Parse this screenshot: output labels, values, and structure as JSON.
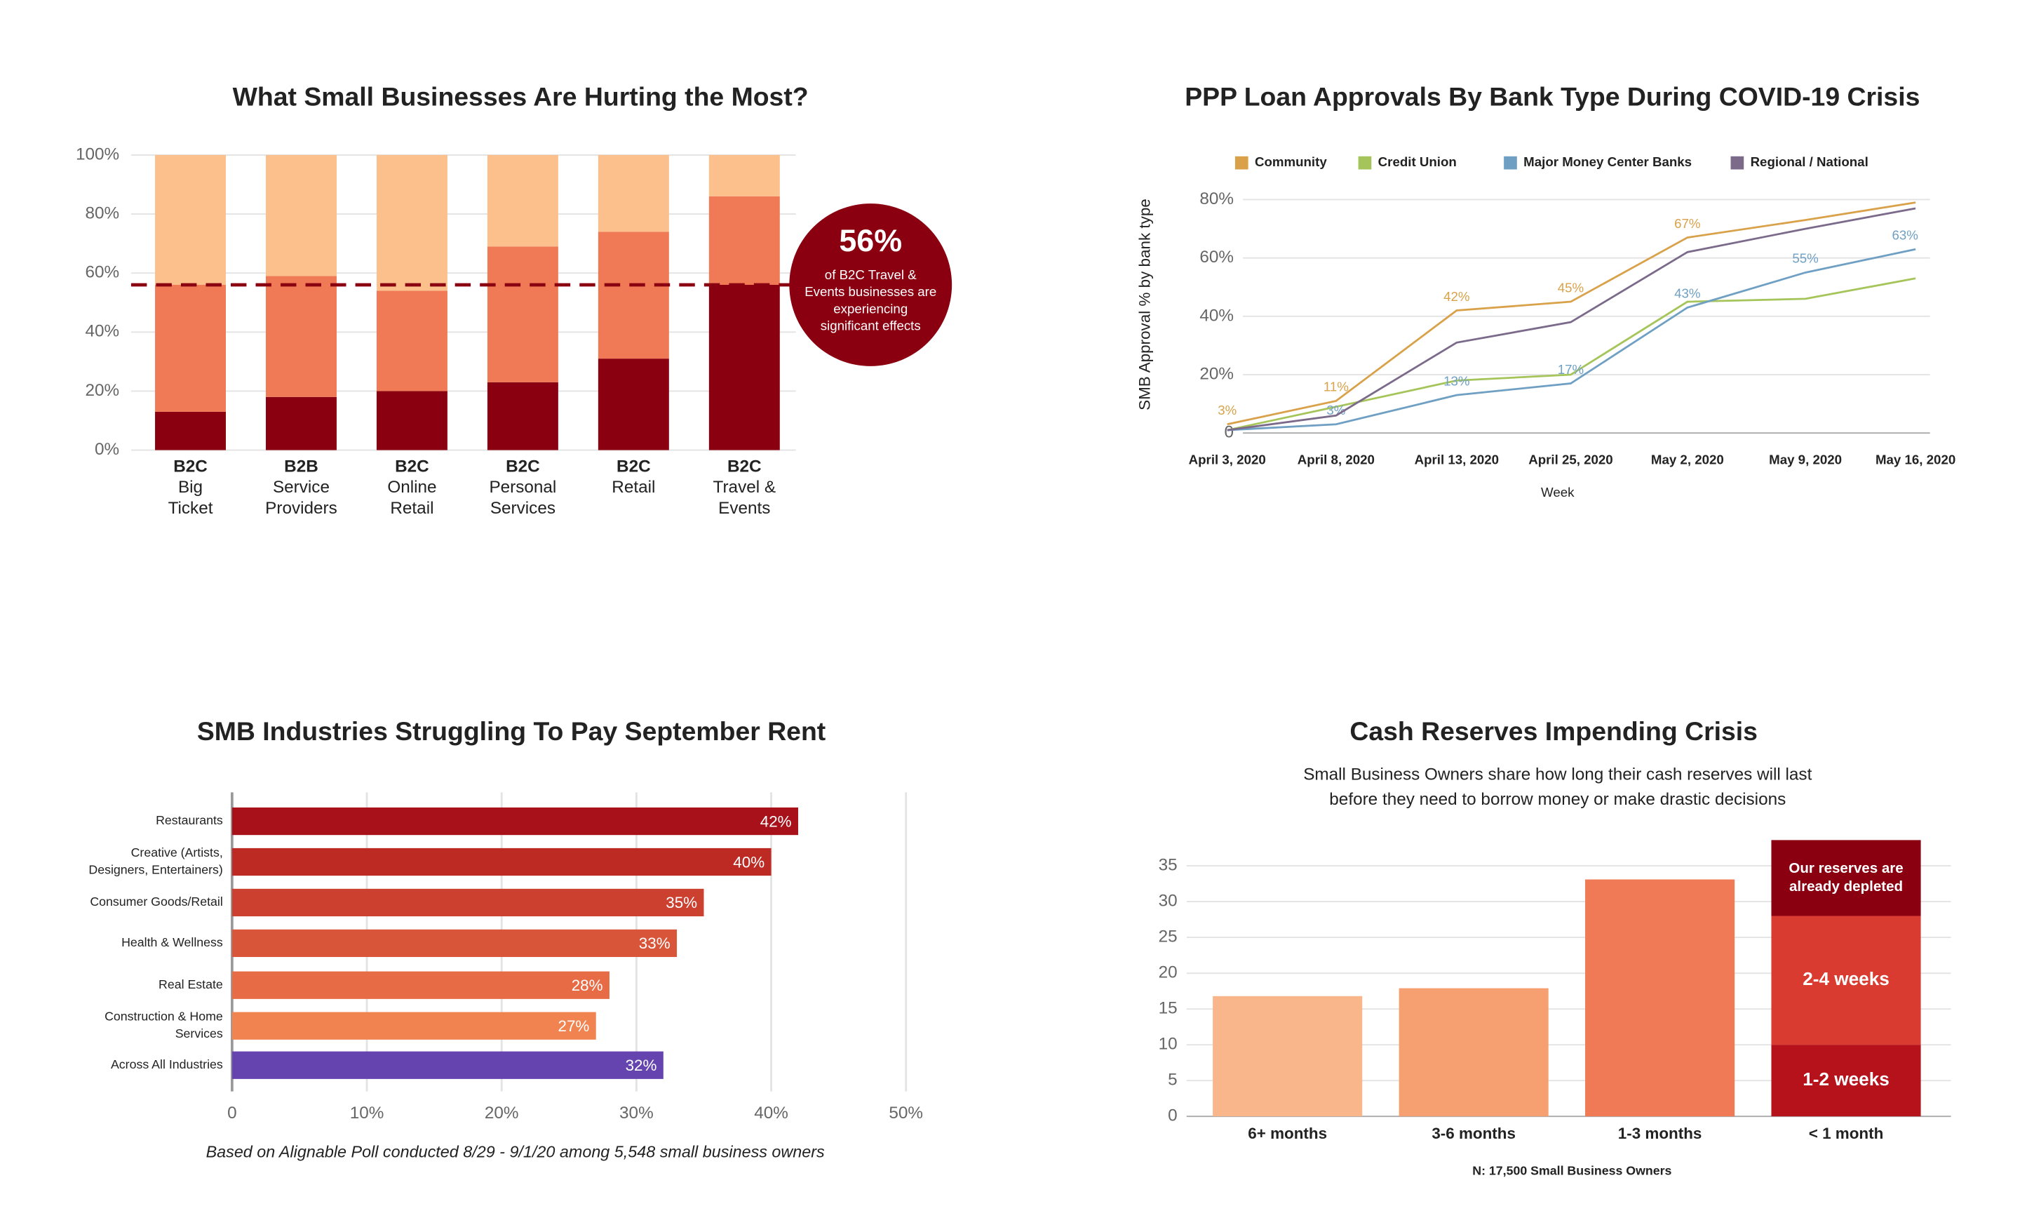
{
  "chart_data": [
    {
      "type": "stacked-bar",
      "title": "What Small Businesses Are Hurting the Most?",
      "categories": [
        [
          "B2C",
          "Big",
          "Ticket"
        ],
        [
          "B2B",
          "Service",
          "Providers"
        ],
        [
          "B2C",
          "Online",
          "Retail"
        ],
        [
          "B2C",
          "Personal",
          "Services"
        ],
        [
          "B2C",
          "Retail"
        ],
        [
          "B2C",
          "Travel &",
          "Events"
        ]
      ],
      "series": [
        {
          "color": "#8b0010",
          "values": [
            13,
            18,
            20,
            23,
            31,
            56
          ]
        },
        {
          "color": "#f07a55",
          "values": [
            43,
            41,
            34,
            46,
            43,
            30
          ]
        },
        {
          "color": "#fbc08b",
          "values": [
            44,
            41,
            46,
            31,
            26,
            14
          ]
        }
      ],
      "ylim": [
        0,
        100
      ],
      "yticks": [
        {
          "value": 0,
          "label": "0%"
        },
        {
          "value": 20,
          "label": "20%"
        },
        {
          "value": 40,
          "label": "40%"
        },
        {
          "value": 60,
          "label": "60%"
        },
        {
          "value": 80,
          "label": "80%"
        },
        {
          "value": 100,
          "label": "100%"
        }
      ],
      "grid": true,
      "annotation": {
        "value": 56,
        "label": "56%",
        "color": "#8b0010",
        "text": [
          "of B2C Travel &",
          "Events businesses are",
          "experiencing",
          "significant effects"
        ]
      }
    },
    {
      "type": "line",
      "title": "PPP Loan Approvals By Bank Type During COVID-19 Crisis",
      "x": [
        "April 3, 2020",
        "April 8, 2020",
        "April 13, 2020",
        "April 25, 2020",
        "May 2, 2020",
        "May 9, 2020",
        "May 16, 2020"
      ],
      "series": [
        {
          "name": "Community",
          "color": "#d9a24a",
          "values": [
            3,
            11,
            42,
            45,
            67,
            73,
            79
          ],
          "value_labels": [
            "3%",
            "11%",
            "42%",
            "45%",
            "67%",
            null,
            null
          ]
        },
        {
          "name": "Credit Union",
          "color": "#a5c55a",
          "values": [
            1,
            9,
            18,
            20,
            45,
            46,
            53
          ]
        },
        {
          "name": "Major Money Center Banks",
          "color": "#6fa0c4",
          "values": [
            1,
            3,
            13,
            17,
            43,
            55,
            63
          ],
          "value_labels": [
            null,
            "3%",
            "13%",
            "17%",
            "43%",
            "55%",
            "63%"
          ]
        },
        {
          "name": "Regional / National",
          "color": "#7b6a8a",
          "values": [
            1,
            6,
            31,
            38,
            62,
            70,
            77
          ]
        }
      ],
      "ylim": [
        0,
        80
      ],
      "yticks": [
        0,
        {
          "value": 20,
          "label": "20%"
        },
        {
          "value": 40,
          "label": "40%"
        },
        {
          "value": 60,
          "label": "60%"
        },
        {
          "value": 80,
          "label": "80%"
        }
      ],
      "grid": true,
      "legend": "top",
      "ylabel": "SMB Approval % by bank type",
      "xlabel": "Week"
    },
    {
      "type": "hbar",
      "title": "SMB Industries Struggling To Pay September Rent",
      "categories": [
        [
          "Restaurants"
        ],
        [
          "Creative (Artists,",
          "Designers, Entertainers)"
        ],
        [
          "Consumer Goods/Retail"
        ],
        [
          "Health & Wellness"
        ],
        [
          "Real Estate"
        ],
        [
          "Construction & Home",
          "Services"
        ],
        [
          "Across All Industries"
        ]
      ],
      "values": [
        42,
        40,
        35,
        33,
        28,
        27,
        32
      ],
      "value_labels": [
        "42%",
        "40%",
        "35%",
        "33%",
        "28%",
        "27%",
        "32%"
      ],
      "colors": [
        "#a8101a",
        "#bd2a24",
        "#cc4030",
        "#d9553a",
        "#e76b45",
        "#f0834f",
        "#6644b0"
      ],
      "xlim": [
        0,
        50
      ],
      "xticks": [
        0,
        {
          "value": 10,
          "label": "10%"
        },
        {
          "value": 20,
          "label": "20%"
        },
        {
          "value": 30,
          "label": "30%"
        },
        {
          "value": 40,
          "label": "40%"
        },
        {
          "value": 50,
          "label": "50%"
        }
      ],
      "grid": true,
      "footnote": "Based on Alignable Poll conducted 8/29 - 9/1/20 among 5,548 small business owners"
    },
    {
      "type": "bar",
      "title": "Cash Reserves Impending Crisis",
      "subtitle": [
        "Small Business Owners share how long their cash reserves will last",
        "before they need to borrow money or make drastic decisions"
      ],
      "categories": [
        "6+ months",
        "3-6 months",
        "1-3 months",
        "< 1 month"
      ],
      "values": [
        16.8,
        17.9,
        33.1,
        null
      ],
      "colors": [
        "#f9b68a",
        "#f6a072",
        "#f07a55",
        null
      ],
      "stack": [
        {
          "name": "1-2 weeks",
          "color": "#b5121b",
          "values": [
            null,
            null,
            null,
            10
          ]
        },
        {
          "name": "2-4 weeks",
          "color": "#d93b30",
          "values": [
            null,
            null,
            null,
            18
          ]
        },
        {
          "name": [
            "Our reserves are",
            "already depleted"
          ],
          "color": "#8b0010",
          "values": [
            null,
            null,
            null,
            10.6
          ]
        }
      ],
      "ylim": [
        0,
        35
      ],
      "yticks": [
        0,
        5,
        10,
        15,
        20,
        25,
        30,
        35
      ],
      "grid": true,
      "footnote": "N: 17,500 Small Business Owners"
    }
  ]
}
